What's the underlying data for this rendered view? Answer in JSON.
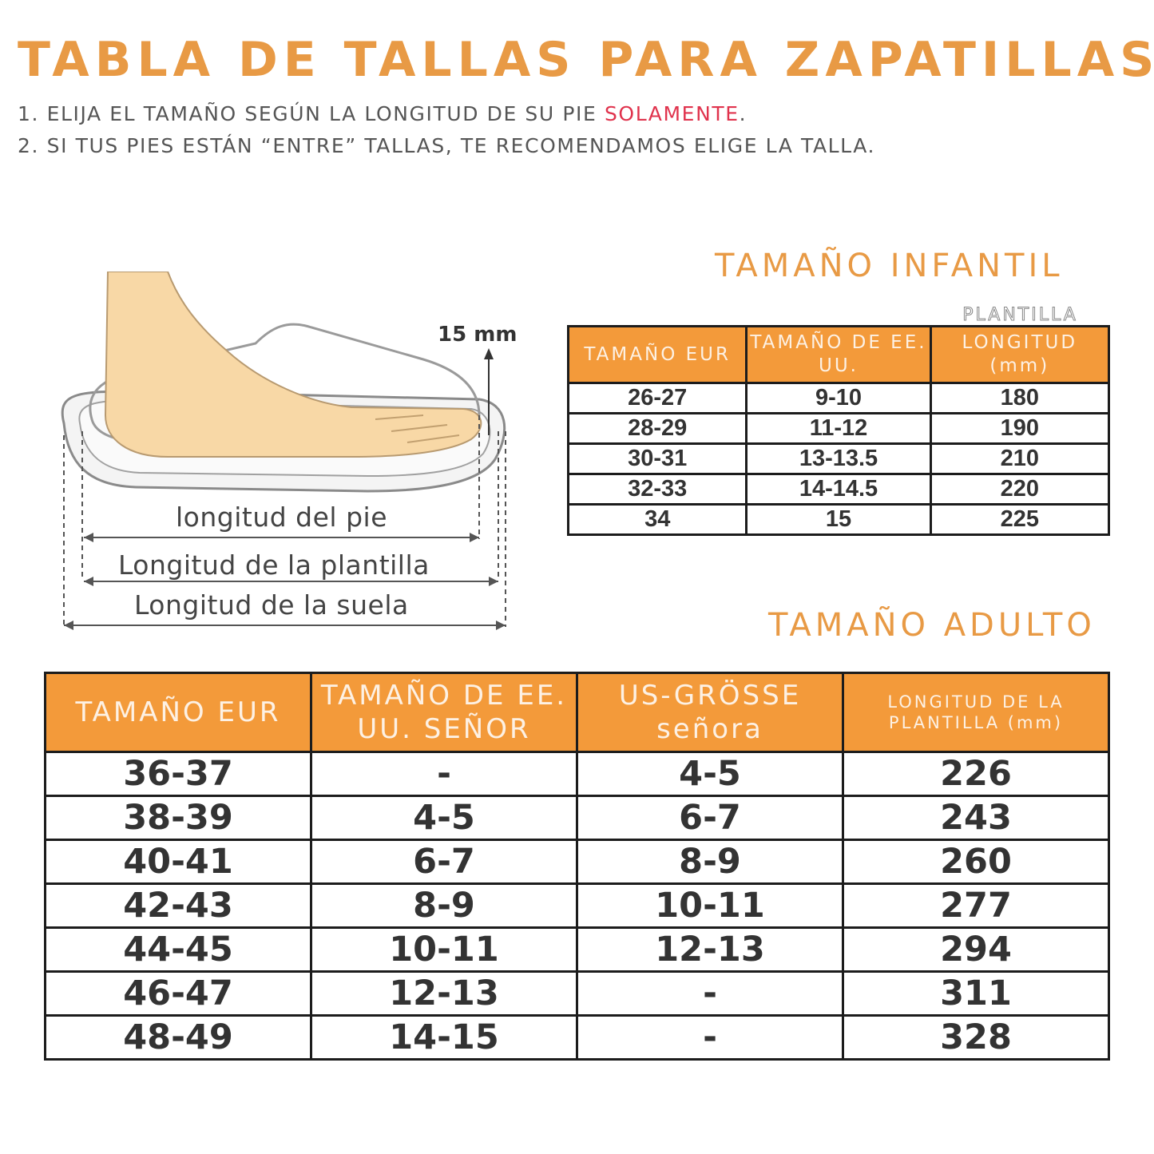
{
  "title": "TABLA DE TALLAS PARA ZAPATILLAS",
  "notes": {
    "line1_prefix": "1. ELIJA EL TAMAÑO SEGÚN LA LONGITUD DE SU PIE ",
    "line1_highlight": "SOLAMENTE",
    "line1_suffix": ".",
    "line2": "2. SI TUS PIES ESTÁN “ENTRE” TALLAS, TE RECOMENDAMOS ELIGE LA TALLA."
  },
  "colors": {
    "accent": "#e89a45",
    "header_bg": "#f39a3a",
    "highlight": "#e0334d"
  },
  "diagram": {
    "offset_label": "15 mm",
    "foot_length": "longitud del pie",
    "insole_length": "Longitud de la plantilla",
    "sole_length": "Longitud de la suela"
  },
  "kids": {
    "title": "TAMAÑO INFANTIL",
    "overlay_header": "PLANTILLA",
    "headers": [
      "TAMAÑO EUR",
      "TAMAÑO DE EE. UU.",
      "LONGITUD (mm)"
    ],
    "rows": [
      [
        "26-27",
        "9-10",
        "180"
      ],
      [
        "28-29",
        "11-12",
        "190"
      ],
      [
        "30-31",
        "13-13.5",
        "210"
      ],
      [
        "32-33",
        "14-14.5",
        "220"
      ],
      [
        "34",
        "15",
        "225"
      ]
    ]
  },
  "adult": {
    "title": "TAMAÑO ADULTO",
    "headers": [
      "TAMAÑO EUR",
      "TAMAÑO DE EE. UU. SEÑOR",
      "US-GRÖSSE señora",
      "LONGITUD DE LA PLANTILLA (mm)"
    ],
    "rows": [
      [
        "36-37",
        "-",
        "4-5",
        "226"
      ],
      [
        "38-39",
        "4-5",
        "6-7",
        "243"
      ],
      [
        "40-41",
        "6-7",
        "8-9",
        "260"
      ],
      [
        "42-43",
        "8-9",
        "10-11",
        "277"
      ],
      [
        "44-45",
        "10-11",
        "12-13",
        "294"
      ],
      [
        "46-47",
        "12-13",
        "-",
        "311"
      ],
      [
        "48-49",
        "14-15",
        "-",
        "328"
      ]
    ]
  }
}
